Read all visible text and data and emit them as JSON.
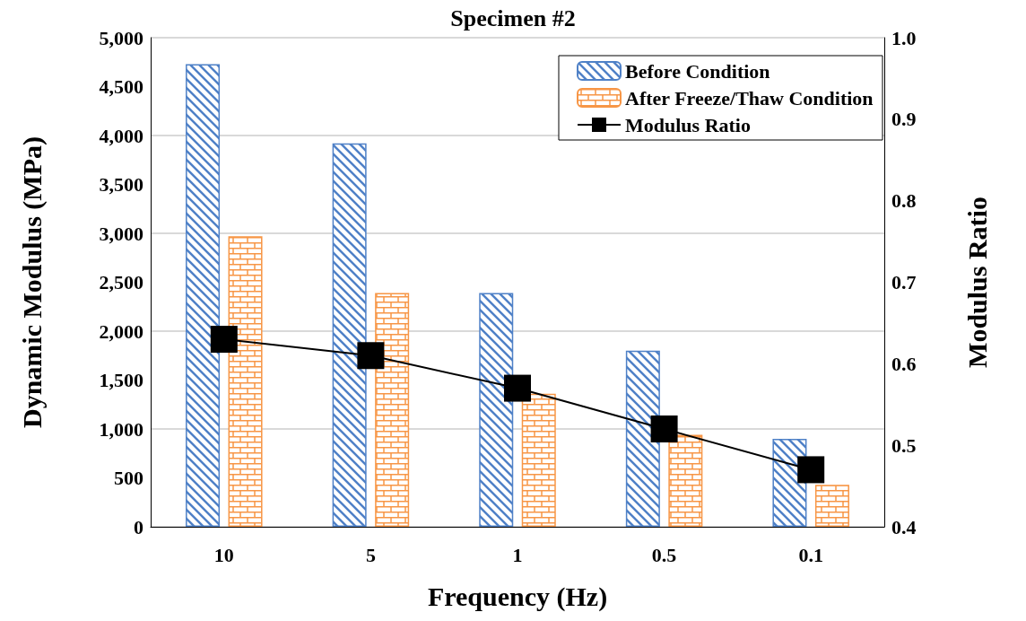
{
  "chart_data": {
    "type": "bar",
    "title": "Specimen #2",
    "xlabel": "Frequency (Hz)",
    "ylabel": "Dynamic Modulus (MPa)",
    "y2label": "Modulus Ratio",
    "categories": [
      "10",
      "5",
      "1",
      "0.5",
      "0.1"
    ],
    "series": [
      {
        "name": "Before Condition",
        "color": "#4f81c7",
        "values": [
          4730,
          3920,
          2390,
          1800,
          900
        ]
      },
      {
        "name": "After Freeze/Thaw Condition",
        "color": "#f79646",
        "values": [
          2970,
          2390,
          1360,
          940,
          430
        ]
      },
      {
        "name": "Modulus Ratio",
        "type": "line",
        "axis": "y2",
        "color": "#000000",
        "marker": "square",
        "values": [
          0.63,
          0.61,
          0.57,
          0.52,
          0.47
        ]
      }
    ],
    "ylim": [
      0,
      5000
    ],
    "yticks": [
      0,
      500,
      {
        "value": 1000,
        "label": "1,000"
      },
      {
        "value": 1500,
        "label": "1,500"
      },
      {
        "value": 2000,
        "label": "2,000"
      },
      {
        "value": 2500,
        "label": "2,500"
      },
      {
        "value": 3000,
        "label": "3,000"
      },
      {
        "value": 3500,
        "label": "3,500"
      },
      {
        "value": 4000,
        "label": "4,000"
      },
      {
        "value": 4500,
        "label": "4,500"
      },
      {
        "value": 5000,
        "label": "5,000"
      }
    ],
    "y2lim": [
      0.4,
      1.0
    ],
    "y2ticks": [
      0.4,
      0.5,
      0.6,
      0.7,
      0.8,
      0.9,
      {
        "value": 1.0,
        "label": "1.0"
      }
    ],
    "grid": "y",
    "legend": "top right",
    "line_style": "solid"
  }
}
